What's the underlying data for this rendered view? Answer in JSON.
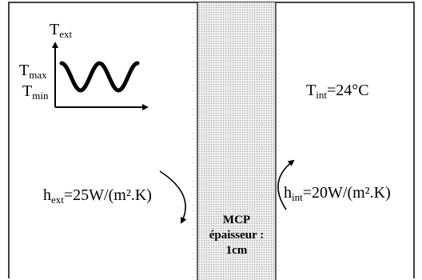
{
  "inset": {
    "y_axis": {
      "base": "T",
      "sub": "ext"
    },
    "max": {
      "base": "T",
      "sub": "max"
    },
    "min": {
      "base": "T",
      "sub": "min"
    }
  },
  "t_int": {
    "base": "T",
    "sub": "int",
    "value": "=24°C"
  },
  "h_ext": {
    "base": "h",
    "sub": "ext",
    "value": "=25W/(m².K)"
  },
  "h_int": {
    "base": "h",
    "sub": "int",
    "value": "=20W/(m².K)"
  },
  "layer": {
    "line1": "MCP",
    "line2": "épaisseur :",
    "line3": "1cm"
  },
  "colors": {
    "border": "#000000",
    "layer_fill": "#ececec",
    "layer_dots": "#9a9a9a",
    "curve": "#000000"
  }
}
